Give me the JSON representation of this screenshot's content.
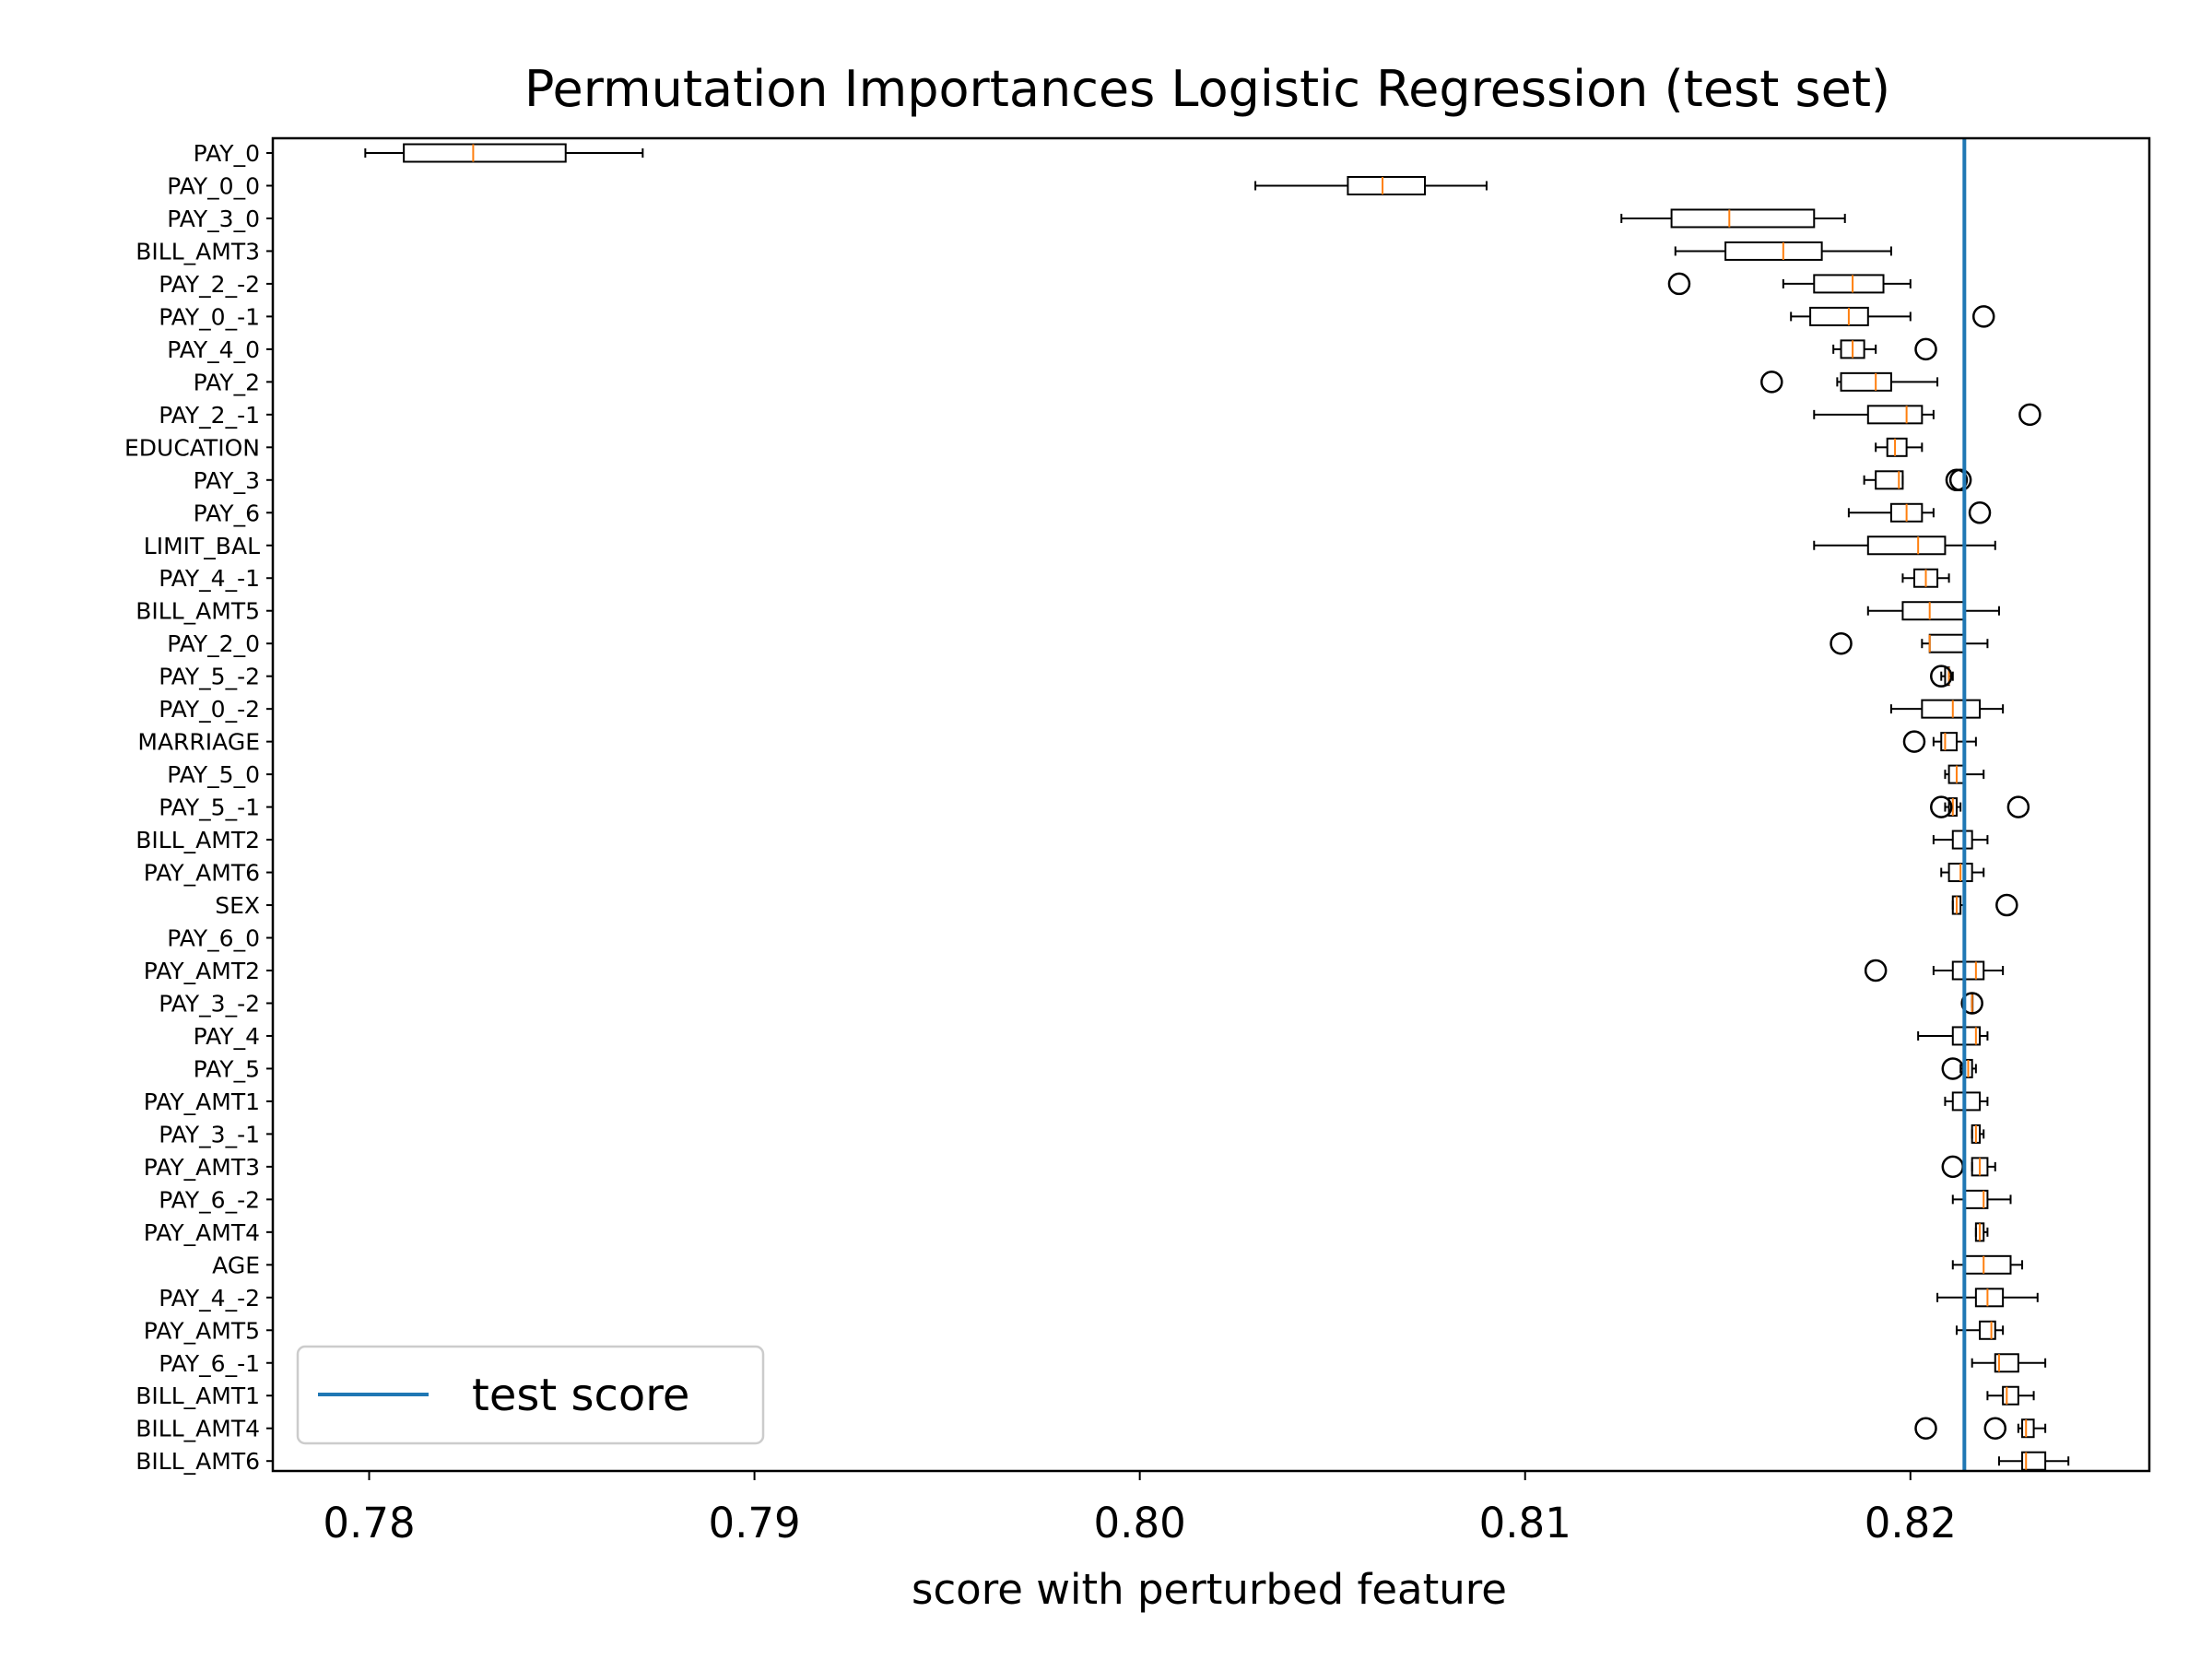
{
  "chart_data": {
    "type": "boxplot",
    "orientation": "horizontal",
    "title": "Permutation Importances Logistic Regression (test set)",
    "xlabel": "score with perturbed feature",
    "ylabel": "",
    "xlim": [
      0.7775,
      0.8262
    ],
    "xticks": [
      0.78,
      0.79,
      0.8,
      0.81,
      0.82
    ],
    "xtick_labels": [
      "0.78",
      "0.79",
      "0.80",
      "0.81",
      "0.82"
    ],
    "reference_line": {
      "label": "test score",
      "value": 0.8214,
      "color": "#1f77b4"
    },
    "legend": {
      "position": "lower-left",
      "entries": [
        "test score"
      ]
    },
    "box_color": "#000000",
    "median_color": "#ff7f0e",
    "categories": [
      {
        "label": "PAY_0",
        "whislo": 0.7799,
        "q1": 0.7809,
        "med": 0.7827,
        "q3": 0.7851,
        "whishi": 0.7871,
        "fliers": []
      },
      {
        "label": "PAY_0_0",
        "whislo": 0.803,
        "q1": 0.8054,
        "med": 0.8063,
        "q3": 0.8074,
        "whishi": 0.809,
        "fliers": []
      },
      {
        "label": "PAY_3_0",
        "whislo": 0.8125,
        "q1": 0.8138,
        "med": 0.8153,
        "q3": 0.8175,
        "whishi": 0.8183,
        "fliers": []
      },
      {
        "label": "BILL_AMT3",
        "whislo": 0.8139,
        "q1": 0.8152,
        "med": 0.8167,
        "q3": 0.8177,
        "whishi": 0.8195,
        "fliers": []
      },
      {
        "label": "PAY_2_-2",
        "whislo": 0.8167,
        "q1": 0.8175,
        "med": 0.8185,
        "q3": 0.8193,
        "whishi": 0.82,
        "fliers": [
          0.814
        ]
      },
      {
        "label": "PAY_0_-1",
        "whislo": 0.8169,
        "q1": 0.8174,
        "med": 0.8184,
        "q3": 0.8189,
        "whishi": 0.82,
        "fliers": [
          0.8219
        ]
      },
      {
        "label": "PAY_4_0",
        "whislo": 0.818,
        "q1": 0.8182,
        "med": 0.8185,
        "q3": 0.8188,
        "whishi": 0.8191,
        "fliers": [
          0.8204
        ]
      },
      {
        "label": "PAY_2",
        "whislo": 0.8181,
        "q1": 0.8182,
        "med": 0.8191,
        "q3": 0.8195,
        "whishi": 0.8207,
        "fliers": [
          0.8164
        ]
      },
      {
        "label": "PAY_2_-1",
        "whislo": 0.8175,
        "q1": 0.8189,
        "med": 0.8199,
        "q3": 0.8203,
        "whishi": 0.8206,
        "fliers": [
          0.8231
        ]
      },
      {
        "label": "EDUCATION",
        "whislo": 0.8191,
        "q1": 0.8194,
        "med": 0.8196,
        "q3": 0.8199,
        "whishi": 0.8203,
        "fliers": []
      },
      {
        "label": "PAY_3",
        "whislo": 0.8188,
        "q1": 0.8191,
        "med": 0.8197,
        "q3": 0.8198,
        "whishi": 0.8198,
        "fliers": [
          0.8212,
          0.8213
        ]
      },
      {
        "label": "PAY_6",
        "whislo": 0.8184,
        "q1": 0.8195,
        "med": 0.8199,
        "q3": 0.8203,
        "whishi": 0.8206,
        "fliers": [
          0.8218
        ]
      },
      {
        "label": "LIMIT_BAL",
        "whislo": 0.8175,
        "q1": 0.8189,
        "med": 0.8202,
        "q3": 0.8209,
        "whishi": 0.8222,
        "fliers": []
      },
      {
        "label": "PAY_4_-1",
        "whislo": 0.8198,
        "q1": 0.8201,
        "med": 0.8204,
        "q3": 0.8207,
        "whishi": 0.821,
        "fliers": []
      },
      {
        "label": "BILL_AMT5",
        "whislo": 0.8189,
        "q1": 0.8198,
        "med": 0.8205,
        "q3": 0.8214,
        "whishi": 0.8223,
        "fliers": []
      },
      {
        "label": "PAY_2_0",
        "whislo": 0.8203,
        "q1": 0.8205,
        "med": 0.8205,
        "q3": 0.8214,
        "whishi": 0.822,
        "fliers": [
          0.8182
        ]
      },
      {
        "label": "PAY_5_-2",
        "whislo": 0.8208,
        "q1": 0.8209,
        "med": 0.821,
        "q3": 0.821,
        "whishi": 0.8211,
        "fliers": [
          0.8208
        ]
      },
      {
        "label": "PAY_0_-2",
        "whislo": 0.8195,
        "q1": 0.8203,
        "med": 0.8211,
        "q3": 0.8218,
        "whishi": 0.8224,
        "fliers": []
      },
      {
        "label": "MARRIAGE",
        "whislo": 0.8206,
        "q1": 0.8208,
        "med": 0.8209,
        "q3": 0.8212,
        "whishi": 0.8217,
        "fliers": [
          0.8201
        ]
      },
      {
        "label": "PAY_5_0",
        "whislo": 0.8209,
        "q1": 0.821,
        "med": 0.8212,
        "q3": 0.8214,
        "whishi": 0.8219,
        "fliers": []
      },
      {
        "label": "PAY_5_-1",
        "whislo": 0.8209,
        "q1": 0.821,
        "med": 0.8211,
        "q3": 0.8212,
        "whishi": 0.8213,
        "fliers": [
          0.8208,
          0.8228
        ]
      },
      {
        "label": "BILL_AMT2",
        "whislo": 0.8206,
        "q1": 0.8211,
        "med": 0.8214,
        "q3": 0.8216,
        "whishi": 0.822,
        "fliers": []
      },
      {
        "label": "PAY_AMT6",
        "whislo": 0.8208,
        "q1": 0.821,
        "med": 0.8213,
        "q3": 0.8216,
        "whishi": 0.8219,
        "fliers": []
      },
      {
        "label": "SEX",
        "whislo": 0.8211,
        "q1": 0.8211,
        "med": 0.8212,
        "q3": 0.8213,
        "whishi": 0.8214,
        "fliers": [
          0.8225
        ]
      },
      {
        "label": "PAY_6_0",
        "whislo": 0.8214,
        "q1": 0.8214,
        "med": 0.8214,
        "q3": 0.8214,
        "whishi": 0.8214,
        "fliers": []
      },
      {
        "label": "PAY_AMT2",
        "whislo": 0.8206,
        "q1": 0.8211,
        "med": 0.8217,
        "q3": 0.8219,
        "whishi": 0.8224,
        "fliers": [
          0.8191
        ]
      },
      {
        "label": "PAY_3_-2",
        "whislo": 0.8216,
        "q1": 0.8216,
        "med": 0.8216,
        "q3": 0.8216,
        "whishi": 0.8216,
        "fliers": [
          0.8216
        ]
      },
      {
        "label": "PAY_4",
        "whislo": 0.8202,
        "q1": 0.8211,
        "med": 0.8217,
        "q3": 0.8218,
        "whishi": 0.822,
        "fliers": []
      },
      {
        "label": "PAY_5",
        "whislo": 0.8213,
        "q1": 0.8214,
        "med": 0.8215,
        "q3": 0.8216,
        "whishi": 0.8217,
        "fliers": [
          0.8211
        ]
      },
      {
        "label": "PAY_AMT1",
        "whislo": 0.8209,
        "q1": 0.8211,
        "med": 0.8214,
        "q3": 0.8218,
        "whishi": 0.822,
        "fliers": []
      },
      {
        "label": "PAY_3_-1",
        "whislo": 0.8216,
        "q1": 0.8216,
        "med": 0.8217,
        "q3": 0.8218,
        "whishi": 0.8219,
        "fliers": []
      },
      {
        "label": "PAY_AMT3",
        "whislo": 0.8216,
        "q1": 0.8216,
        "med": 0.8218,
        "q3": 0.822,
        "whishi": 0.8222,
        "fliers": [
          0.8211
        ]
      },
      {
        "label": "PAY_6_-2",
        "whislo": 0.8211,
        "q1": 0.8214,
        "med": 0.8219,
        "q3": 0.822,
        "whishi": 0.8226,
        "fliers": []
      },
      {
        "label": "PAY_AMT4",
        "whislo": 0.8217,
        "q1": 0.8217,
        "med": 0.8218,
        "q3": 0.8219,
        "whishi": 0.822,
        "fliers": []
      },
      {
        "label": "AGE",
        "whislo": 0.8211,
        "q1": 0.8214,
        "med": 0.8219,
        "q3": 0.8226,
        "whishi": 0.8229,
        "fliers": []
      },
      {
        "label": "PAY_4_-2",
        "whislo": 0.8207,
        "q1": 0.8217,
        "med": 0.822,
        "q3": 0.8224,
        "whishi": 0.8233,
        "fliers": []
      },
      {
        "label": "PAY_AMT5",
        "whislo": 0.8212,
        "q1": 0.8218,
        "med": 0.8221,
        "q3": 0.8222,
        "whishi": 0.8224,
        "fliers": []
      },
      {
        "label": "PAY_6_-1",
        "whislo": 0.8216,
        "q1": 0.8222,
        "med": 0.8223,
        "q3": 0.8228,
        "whishi": 0.8235,
        "fliers": []
      },
      {
        "label": "BILL_AMT1",
        "whislo": 0.822,
        "q1": 0.8224,
        "med": 0.8225,
        "q3": 0.8228,
        "whishi": 0.8232,
        "fliers": []
      },
      {
        "label": "BILL_AMT4",
        "whislo": 0.8228,
        "q1": 0.8229,
        "med": 0.823,
        "q3": 0.8232,
        "whishi": 0.8235,
        "fliers": [
          0.8204,
          0.8222
        ]
      },
      {
        "label": "BILL_AMT6",
        "whislo": 0.8223,
        "q1": 0.8229,
        "med": 0.823,
        "q3": 0.8235,
        "whishi": 0.8241,
        "fliers": []
      }
    ]
  }
}
